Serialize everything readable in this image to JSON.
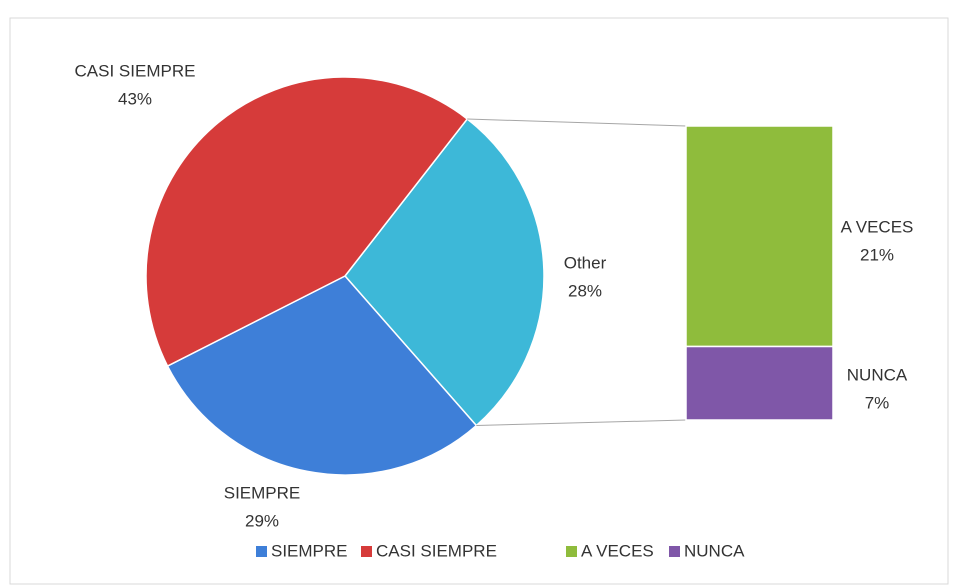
{
  "chart_data": {
    "type": "pie-of-bar",
    "slices": [
      {
        "name": "SIEMPRE",
        "value": 29,
        "value_label": "29%",
        "color": "#3e7fd8"
      },
      {
        "name": "CASI SIEMPRE",
        "value": 43,
        "value_label": "43%",
        "color": "#d63b3a"
      }
    ],
    "other": {
      "name": "Other",
      "value": 28,
      "value_label": "28%",
      "color": "#3db8d8"
    },
    "bar": [
      {
        "name": "A VECES",
        "value": 21,
        "value_label": "21%",
        "color": "#8fbc3c"
      },
      {
        "name": "NUNCA",
        "value": 7,
        "value_label": "7%",
        "color": "#7f57a8"
      }
    ],
    "legend": "bottom"
  }
}
